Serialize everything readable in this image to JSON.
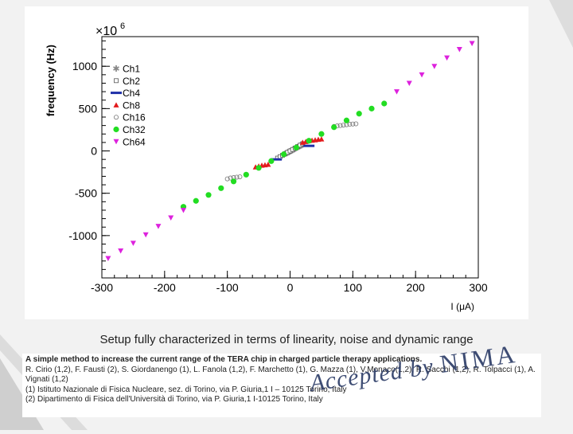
{
  "caption": "Setup fully characterized in terms of linearity, noise and dynamic range",
  "reference": {
    "title": "A simple method to increase the current range of the TERA chip in charged particle therapy applications.",
    "authors_line1": "R. Cirio (1,2), F. Fausti (2), S. Giordanengo (1), L. Fanola (1,2), F. Marchetto (1), G. Mazza (1), V.Monaco(1,2), R. Sacchi (1,2), R. Tolpacci (1), A.",
    "authors_line2": "Vignati (1,2)",
    "affil1": "(1) Istituto Nazionale di Fisica Nucleare, sez. di Torino, via P. Giuria,1 I – 10125 Torino, Italy",
    "affil2": "(2) Dipartimento di Fisica dell'Università di Torino, via P. Giuria,1 I-10125 Torino, Italy"
  },
  "watermark": {
    "text": "Accepted by ",
    "emph": "NIMA"
  },
  "chart_data": {
    "type": "scatter",
    "xlabel": "I (μA)",
    "ylabel": "frequency (Hz)",
    "y_multiplier_label": "×10",
    "y_multiplier_exp": "6",
    "xlim": [
      -300,
      300
    ],
    "ylim": [
      -1500,
      1350
    ],
    "xticks": [
      -300,
      -200,
      -100,
      0,
      100,
      200,
      300
    ],
    "yticks": [
      -1000,
      -500,
      0,
      500,
      1000
    ],
    "xtick_labels": [
      "-300",
      "-200",
      "-100",
      "0",
      "100",
      "200",
      "300"
    ],
    "ytick_labels": [
      "-1000",
      "-500",
      "0",
      "500",
      "1000"
    ],
    "legend_position": "top-left",
    "series": [
      {
        "name": "Ch1",
        "marker": "star",
        "color": "#888888",
        "x": [
          -8,
          -6,
          -4,
          -2,
          0,
          2,
          4,
          6,
          8,
          10,
          12,
          14,
          16,
          18,
          20
        ],
        "y": [
          -35,
          -28,
          -20,
          -12,
          -4,
          4,
          12,
          20,
          28,
          36,
          44,
          52,
          60,
          68,
          76
        ]
      },
      {
        "name": "Ch2",
        "marker": "open-square",
        "color": "#555555",
        "x": [
          -20,
          -16,
          -12,
          -8,
          -4,
          0,
          4,
          8,
          12,
          16,
          20
        ],
        "y": [
          -85,
          -68,
          -51,
          -34,
          -17,
          0,
          17,
          34,
          51,
          68,
          85
        ]
      },
      {
        "name": "Ch4",
        "marker": "bar",
        "color": "#1f2fa8",
        "x": [
          -22,
          30
        ],
        "y": [
          -100,
          60
        ]
      },
      {
        "name": "Ch8",
        "marker": "triangle-up",
        "color": "#e31a1c",
        "x": [
          -55,
          -50,
          -45,
          -40,
          -35,
          20,
          25,
          30,
          35,
          40,
          45,
          50
        ],
        "y": [
          -190,
          -180,
          -170,
          -165,
          -160,
          100,
          110,
          120,
          125,
          130,
          135,
          140
        ]
      },
      {
        "name": "Ch16",
        "marker": "open-circle",
        "color": "#777777",
        "x": [
          -100,
          -95,
          -90,
          -85,
          -80,
          70,
          75,
          80,
          85,
          90,
          95,
          100,
          105
        ],
        "y": [
          -330,
          -320,
          -315,
          -310,
          -305,
          290,
          295,
          300,
          305,
          310,
          315,
          318,
          320
        ]
      },
      {
        "name": "Ch32",
        "marker": "circle",
        "color": "#22dd22",
        "x": [
          -170,
          -150,
          -130,
          -110,
          -90,
          -70,
          -50,
          -30,
          -10,
          10,
          30,
          50,
          70,
          90,
          110,
          130,
          150
        ],
        "y": [
          -660,
          -590,
          -520,
          -440,
          -360,
          -280,
          -200,
          -120,
          -40,
          40,
          120,
          200,
          280,
          360,
          440,
          500,
          560
        ]
      },
      {
        "name": "Ch64",
        "marker": "triangle-down",
        "color": "#dd22dd",
        "x": [
          -290,
          -270,
          -250,
          -230,
          -210,
          -190,
          -170,
          170,
          190,
          210,
          230,
          250,
          270,
          290
        ],
        "y": [
          -1270,
          -1180,
          -1090,
          -990,
          -890,
          -790,
          -700,
          700,
          800,
          900,
          1000,
          1100,
          1200,
          1270
        ]
      }
    ]
  }
}
